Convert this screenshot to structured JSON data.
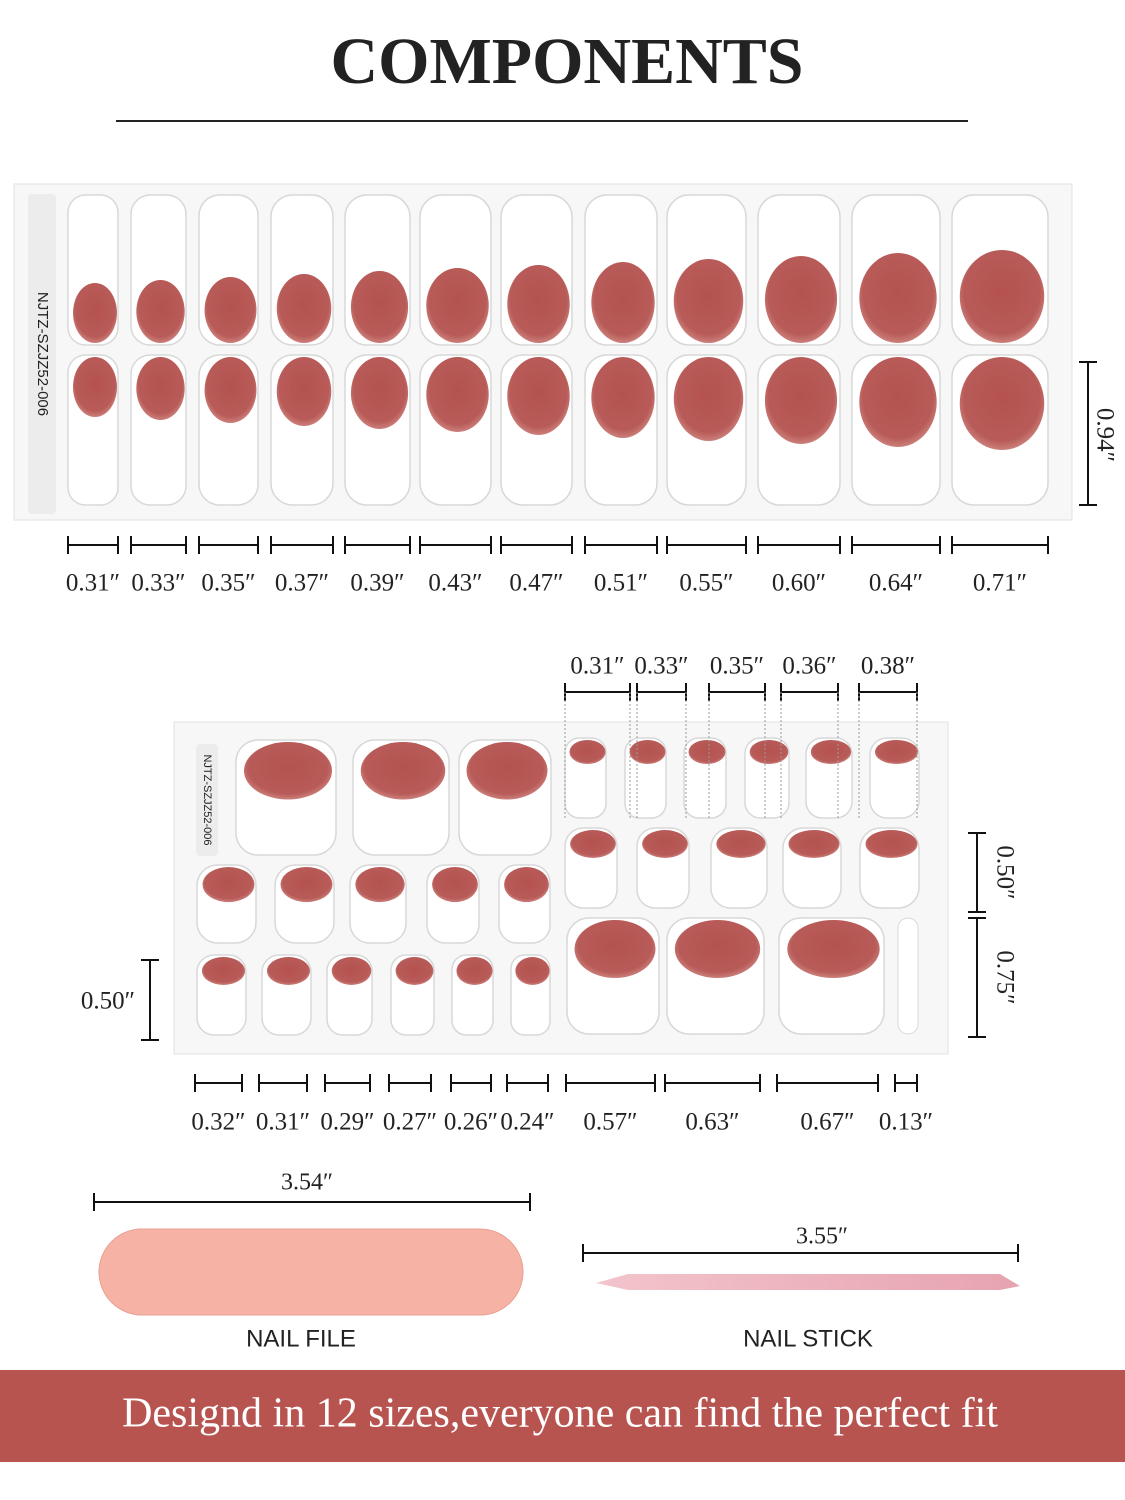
{
  "title": "COMPONENTS",
  "finger_sheet": {
    "code": "NJTZ-SZJZ52-006",
    "height": "0.94″",
    "widths": [
      "0.31″",
      "0.33″",
      "0.35″",
      "0.37″",
      "0.39″",
      "0.43″",
      "0.47″",
      "0.51″",
      "0.55″",
      "0.60″",
      "0.64″",
      "0.71″"
    ]
  },
  "toe_sheet": {
    "code": "NJTZ-SZJZ52-006",
    "top_widths": [
      "0.31″",
      "0.33″",
      "0.35″",
      "0.36″",
      "0.38″"
    ],
    "right_heights": [
      "0.50″",
      "0.75″"
    ],
    "left_height": "0.50″",
    "bottom_widths": [
      "0.32″",
      "0.31″",
      "0.29″",
      "0.27″",
      "0.26″",
      "0.24″",
      "0.57″",
      "0.63″",
      "0.67″",
      "0.13″"
    ]
  },
  "nail_file": {
    "length": "3.54″",
    "label": "NAIL FILE"
  },
  "nail_stick": {
    "length": "3.55″",
    "label": "NAIL STICK"
  },
  "banner": "Designd in 12 sizes,everyone can find the perfect fit"
}
